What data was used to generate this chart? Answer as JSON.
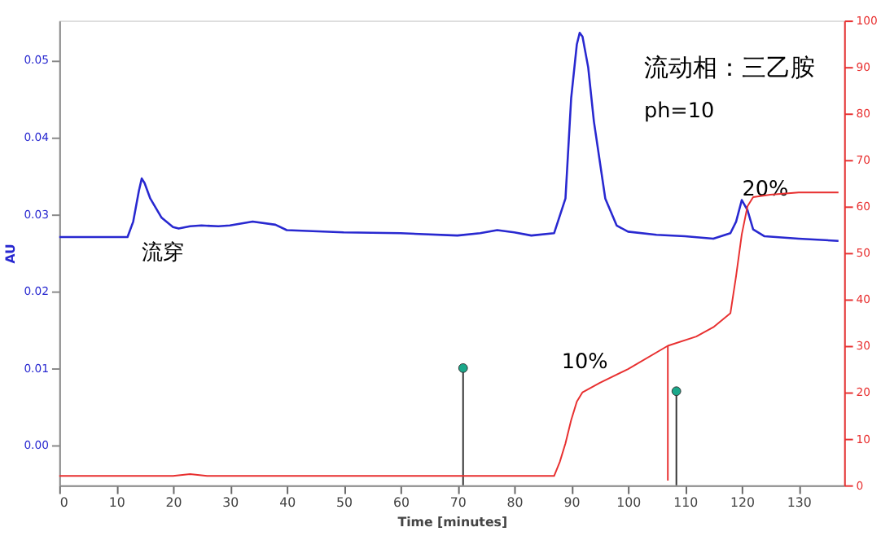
{
  "chart_data": {
    "type": "line",
    "xlabel": "Time [minutes]",
    "ylabel": "AU",
    "xlim": [
      0,
      138
    ],
    "xticks": [
      0,
      10,
      20,
      30,
      40,
      50,
      60,
      70,
      80,
      90,
      100,
      110,
      120,
      130
    ],
    "ylim": [
      -0.0052,
      0.0551
    ],
    "yticks": [
      {
        "value": 0,
        "label": "0.00"
      },
      {
        "value": 0.01,
        "label": "0.01"
      },
      {
        "value": 0.02,
        "label": "0.02"
      },
      {
        "value": 0.03,
        "label": "0.03"
      },
      {
        "value": 0.04,
        "label": "0.04"
      },
      {
        "value": 0.05,
        "label": "0.05"
      }
    ],
    "y2lim": [
      0,
      100
    ],
    "y2ticks": [
      0,
      10,
      20,
      30,
      40,
      50,
      60,
      70,
      80,
      90,
      100
    ],
    "grid": false,
    "series": [
      {
        "color": "#2828d0",
        "x": [
          0,
          10,
          12,
          13,
          14,
          14.5,
          15,
          16,
          18,
          20,
          21,
          23,
          25,
          28,
          30,
          34,
          38,
          40,
          50,
          60,
          70,
          74,
          77,
          80,
          83,
          87,
          89,
          90,
          91,
          91.5,
          92,
          93,
          94,
          96,
          98,
          100,
          105,
          110,
          115,
          118,
          119,
          120,
          121,
          122,
          124,
          130,
          137
        ],
        "values": [
          0.027,
          0.027,
          0.027,
          0.029,
          0.033,
          0.0346,
          0.034,
          0.032,
          0.0295,
          0.0283,
          0.0281,
          0.0284,
          0.0285,
          0.0284,
          0.0285,
          0.029,
          0.0286,
          0.0279,
          0.0276,
          0.0275,
          0.0272,
          0.0275,
          0.0279,
          0.0276,
          0.0272,
          0.0275,
          0.032,
          0.045,
          0.052,
          0.0535,
          0.053,
          0.049,
          0.042,
          0.032,
          0.0285,
          0.0277,
          0.0273,
          0.0271,
          0.0268,
          0.0275,
          0.029,
          0.0318,
          0.0305,
          0.028,
          0.0271,
          0.0268,
          0.0265
        ]
      },
      {
        "color": "#e83030",
        "axis": "y2",
        "x": [
          0,
          20,
          23,
          26,
          30,
          60,
          87,
          88,
          89,
          90,
          91,
          92,
          95,
          100,
          107,
          112,
          115,
          118,
          119,
          120,
          121,
          122,
          125,
          130,
          137
        ],
        "values": [
          2,
          2,
          2.4,
          2,
          2,
          2,
          2,
          5,
          9,
          14,
          18,
          20,
          22,
          25,
          30,
          32,
          34,
          37,
          45,
          54,
          60,
          62,
          62.5,
          63,
          63
        ]
      },
      {
        "color": "#e83030",
        "axis": "y2",
        "x": [
          107,
          107
        ],
        "values": [
          30,
          1
        ]
      },
      {
        "color": "#333333",
        "x": [
          71,
          71
        ],
        "values": [
          -0.0052,
          0.01
        ]
      },
      {
        "color": "#333333",
        "x": [
          108.5,
          108.5
        ],
        "values": [
          -0.0052,
          0.007
        ]
      },
      {
        "type": "scatter",
        "color": "#1aa88a",
        "marker": "circle",
        "x": [
          71,
          108.5
        ],
        "values": [
          0.01,
          0.007
        ]
      }
    ],
    "annotations": [
      "流穿",
      "10%",
      "20%",
      "流动相：三乙胺",
      "ph=10"
    ]
  }
}
